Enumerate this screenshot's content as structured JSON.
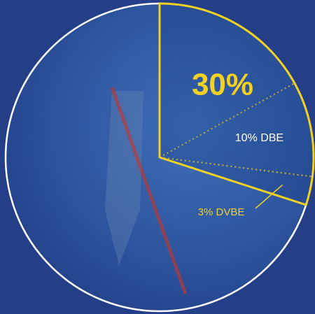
{
  "chart_data": {
    "type": "pie",
    "values": [
      30,
      10,
      3
    ],
    "value_labels": [
      "30%",
      "10% DBE",
      "3% DVBE"
    ],
    "colors": [
      "#f2d024",
      "#ffffff",
      "#f2d024"
    ]
  }
}
